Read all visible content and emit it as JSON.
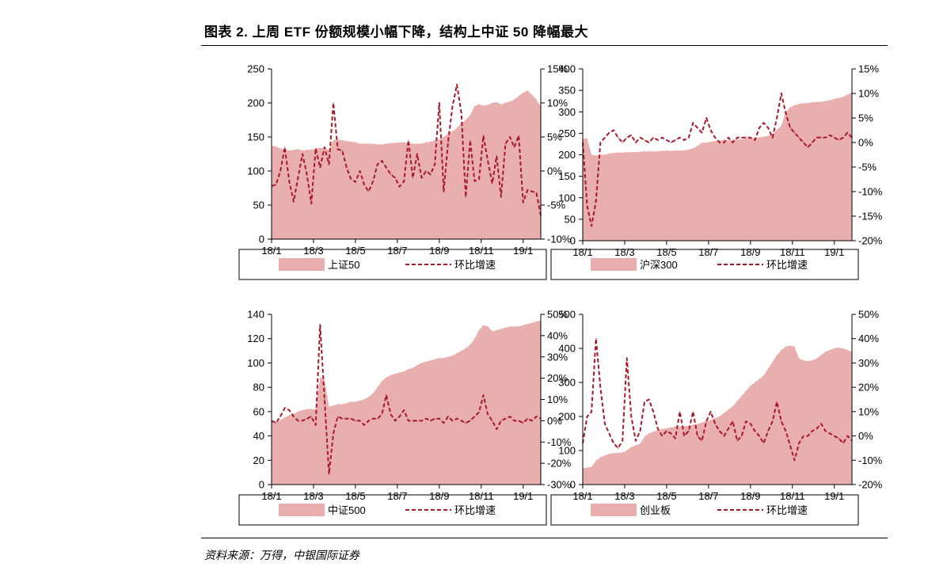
{
  "page": {
    "title": "图表 2. 上周 ETF 份额规模小幅下降，结构上中证 50 降幅最大",
    "source": "资料来源：万得，中银国际证券"
  },
  "colors": {
    "area": "#e9aeae",
    "line": "#a5192a",
    "axis": "#000000"
  },
  "chart_data": [
    {
      "type": "area",
      "x_ticks": [
        "18/1",
        "18/3",
        "18/5",
        "18/7",
        "18/9",
        "18/11",
        "19/1"
      ],
      "y_left": {
        "min": 0,
        "max": 250,
        "ticks": [
          0,
          50,
          100,
          150,
          200,
          250
        ],
        "labels": [
          "0",
          "50",
          "100",
          "150",
          "200",
          "250"
        ]
      },
      "y_right": {
        "min": -10,
        "max": 15,
        "ticks": [
          -10,
          -5,
          0,
          5,
          10,
          15
        ],
        "labels": [
          "-10%",
          "-5%",
          "0%",
          "5%",
          "10%",
          "15%"
        ]
      },
      "legend": {
        "area": "上证50",
        "line": "环比增速"
      },
      "series": [
        {
          "name": "上证50",
          "axis": "left",
          "values": [
            137,
            136,
            133,
            131,
            130,
            131,
            132,
            130,
            131,
            131,
            133,
            134,
            133,
            131,
            145,
            146,
            145,
            144,
            143,
            142,
            140,
            140,
            140,
            140,
            139,
            139,
            140,
            141,
            141,
            142,
            142,
            141,
            140,
            140,
            140,
            142,
            143,
            145,
            146,
            150,
            155,
            158,
            163,
            170,
            175,
            182,
            195,
            198,
            196,
            197,
            200,
            201,
            198,
            200,
            202,
            205,
            210,
            215,
            218,
            212,
            205,
            195
          ]
        },
        {
          "name": "环比增速",
          "axis": "right",
          "values": [
            -2.2,
            -2,
            0,
            3.5,
            -1.5,
            -4.5,
            -1,
            2.5,
            -0.5,
            -4.8,
            3.3,
            0.5,
            3.5,
            1,
            10,
            3.2,
            3,
            0.5,
            -1.2,
            -1.6,
            0,
            -2,
            -3,
            -1.5,
            1,
            1.5,
            0.5,
            -0.5,
            -1,
            -2.3,
            -1.5,
            4.5,
            -1,
            2.5,
            -1,
            0,
            -0.5,
            1,
            10,
            -3,
            4.3,
            9.5,
            12.7,
            8.5,
            -3.8,
            4.5,
            -1.5,
            -1.2,
            5.2,
            1.5,
            -1.8,
            2.2,
            -3.8,
            4,
            5,
            3.5,
            5.2,
            -4.6,
            -2.8,
            -3,
            -3.2,
            -6.5
          ]
        }
      ]
    },
    {
      "type": "area",
      "x_ticks": [
        "18/1",
        "18/3",
        "18/5",
        "18/7",
        "18/9",
        "18/11",
        "19/1"
      ],
      "y_left": {
        "min": 0,
        "max": 400,
        "ticks": [
          0,
          50,
          100,
          150,
          200,
          250,
          300,
          350,
          400
        ],
        "labels": [
          "0",
          "50",
          "100",
          "150",
          "200",
          "250",
          "300",
          "350",
          "400"
        ]
      },
      "y_right": {
        "min": -20,
        "max": 15,
        "ticks": [
          -20,
          -15,
          -10,
          -5,
          0,
          5,
          10,
          15
        ],
        "labels": [
          "-20%",
          "-15%",
          "-10%",
          "-5%",
          "0%",
          "5%",
          "10%",
          "15%"
        ]
      },
      "legend": {
        "area": "沪深300",
        "line": "环比增速"
      },
      "series": [
        {
          "name": "沪深300",
          "axis": "left",
          "values": [
            238,
            238,
            200,
            198,
            200,
            200,
            203,
            204,
            205,
            205,
            206,
            206,
            206,
            207,
            208,
            208,
            208,
            208,
            209,
            210,
            209,
            210,
            210,
            210,
            212,
            215,
            220,
            228,
            228,
            230,
            232,
            233,
            235,
            233,
            235,
            236,
            236,
            238,
            238,
            239,
            240,
            242,
            244,
            248,
            258,
            268,
            300,
            310,
            315,
            318,
            320,
            320,
            322,
            323,
            323,
            325,
            327,
            330,
            332,
            335,
            340,
            345
          ]
        },
        {
          "name": "环比增速",
          "axis": "right",
          "values": [
            0,
            -13,
            -17,
            -12,
            0,
            1,
            2,
            2.5,
            1,
            0,
            1,
            1.5,
            0,
            1,
            0.5,
            0,
            1,
            0.5,
            1,
            0.5,
            0,
            0.5,
            1,
            0.5,
            1,
            4,
            3,
            2,
            5,
            2.5,
            1,
            0,
            0,
            1,
            0,
            1,
            1,
            1,
            1,
            0.5,
            3,
            4,
            3,
            1,
            5,
            10,
            6,
            3,
            2,
            1,
            0,
            -1,
            0,
            1,
            1,
            1,
            1.5,
            1,
            0.5,
            1,
            2,
            1
          ]
        }
      ]
    },
    {
      "type": "area",
      "x_ticks": [
        "18/1",
        "18/3",
        "18/5",
        "18/7",
        "18/9",
        "18/11",
        "19/1"
      ],
      "y_left": {
        "min": 0,
        "max": 140,
        "ticks": [
          0,
          20,
          40,
          60,
          80,
          100,
          120,
          140
        ],
        "labels": [
          "0",
          "20",
          "40",
          "60",
          "80",
          "100",
          "120",
          "140"
        ]
      },
      "y_right": {
        "min": -30,
        "max": 50,
        "ticks": [
          -30,
          -20,
          -10,
          0,
          10,
          20,
          30,
          40,
          50
        ],
        "labels": [
          "-30%",
          "-20%",
          "-10%",
          "0%",
          "10%",
          "20%",
          "30%",
          "40%",
          "50%"
        ]
      },
      "legend": {
        "area": "中证500",
        "line": "环比增速"
      },
      "series": [
        {
          "name": "中证500",
          "axis": "left",
          "values": [
            52,
            51,
            53,
            55,
            57,
            58,
            60,
            61,
            62,
            62,
            62,
            88,
            86,
            64,
            65,
            66,
            66,
            67,
            68,
            68,
            69,
            70,
            72,
            75,
            80,
            85,
            88,
            90,
            91,
            92,
            93,
            95,
            96,
            98,
            100,
            101,
            102,
            103,
            104,
            104,
            105,
            106,
            108,
            110,
            112,
            115,
            120,
            127,
            131,
            130,
            126,
            127,
            128,
            129,
            130,
            130,
            130,
            131,
            132,
            133,
            134,
            135
          ]
        },
        {
          "name": "环比增速",
          "axis": "right",
          "values": [
            0,
            -1,
            2,
            6,
            5,
            2,
            0,
            0,
            1,
            2,
            -2,
            45,
            10,
            -25,
            -6,
            2,
            1,
            1,
            1,
            0,
            0,
            -2,
            0,
            1,
            1,
            3,
            12,
            3,
            0,
            2,
            5,
            0,
            0,
            0,
            0,
            1,
            0,
            1,
            1,
            -1,
            2,
            0,
            1,
            0,
            -1,
            0,
            2,
            4,
            12,
            3,
            0,
            -4,
            0,
            1,
            2,
            0,
            0,
            -1,
            1,
            0,
            2,
            1
          ]
        }
      ]
    },
    {
      "type": "area",
      "x_ticks": [
        "18/1",
        "18/3",
        "18/5",
        "18/7",
        "18/9",
        "18/11",
        "19/1"
      ],
      "y_left": {
        "min": 0,
        "max": 500,
        "ticks": [
          0,
          100,
          200,
          300,
          400,
          500
        ],
        "labels": [
          "0",
          "100",
          "200",
          "300",
          "400",
          "500"
        ]
      },
      "y_right": {
        "min": -20,
        "max": 50,
        "ticks": [
          -20,
          -10,
          0,
          10,
          20,
          30,
          40,
          50
        ],
        "labels": [
          "-20%",
          "-10%",
          "0%",
          "10%",
          "20%",
          "30%",
          "40%",
          "50%"
        ]
      },
      "legend": {
        "area": "创业板",
        "line": "环比增速"
      },
      "series": [
        {
          "name": "创业板",
          "axis": "left",
          "values": [
            48,
            50,
            52,
            70,
            80,
            85,
            90,
            92,
            93,
            94,
            100,
            110,
            115,
            120,
            140,
            150,
            155,
            160,
            163,
            165,
            168,
            170,
            170,
            172,
            172,
            175,
            178,
            182,
            185,
            190,
            195,
            200,
            210,
            220,
            230,
            245,
            260,
            275,
            290,
            300,
            310,
            320,
            340,
            360,
            380,
            395,
            405,
            408,
            405,
            370,
            365,
            362,
            365,
            370,
            380,
            390,
            395,
            400,
            402,
            400,
            395,
            390
          ]
        },
        {
          "name": "环比增速",
          "axis": "right",
          "values": [
            -3,
            8,
            10,
            40,
            20,
            5,
            1,
            -3,
            -5,
            -2,
            32,
            8,
            -2,
            2,
            14,
            15,
            10,
            3,
            0,
            2,
            1,
            -1,
            10,
            0,
            2,
            10,
            0,
            -2,
            6,
            10,
            5,
            2,
            0,
            3,
            6,
            -2,
            0,
            6,
            5,
            2,
            0,
            -3,
            2,
            6,
            14,
            6,
            2,
            -4,
            -10,
            -3,
            0,
            0,
            2,
            3,
            5,
            2,
            1,
            0,
            -1,
            -3,
            0,
            -2
          ]
        }
      ]
    }
  ]
}
